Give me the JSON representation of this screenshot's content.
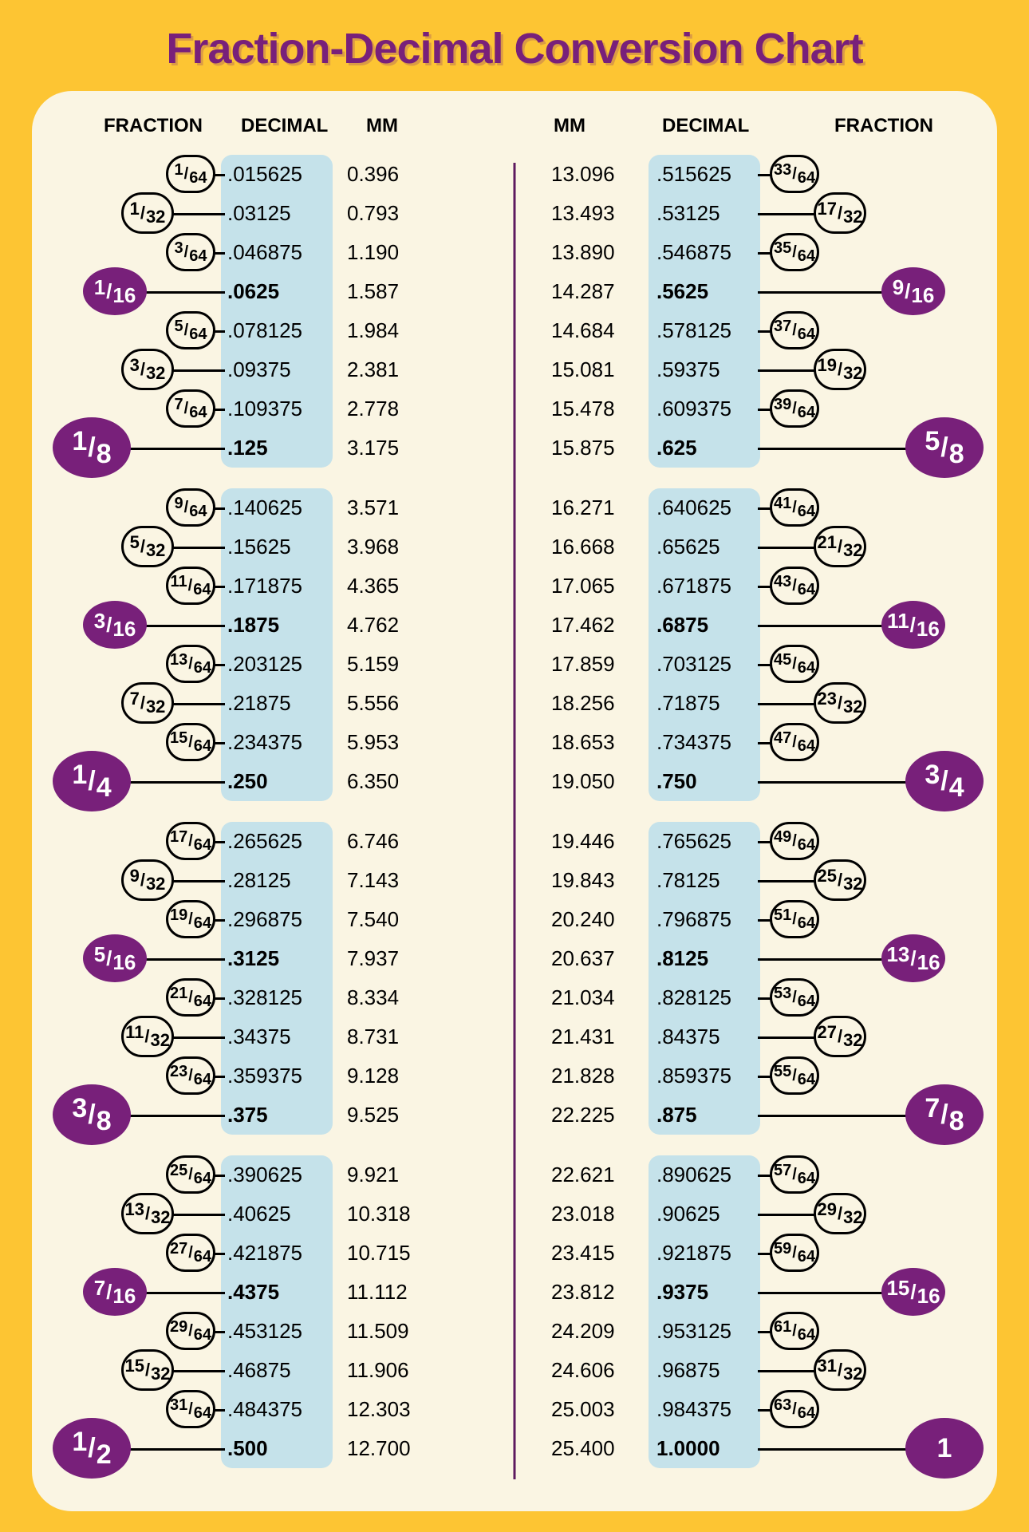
{
  "title": "Fraction-Decimal Conversion Chart",
  "colors": {
    "page_bg": "#fdc533",
    "sheet_bg": "#faf5e3",
    "accent": "#78207a",
    "highlight": "#c5e2ea",
    "divider": "#5d1a5f"
  },
  "columns": [
    "FRACTION",
    "DECIMAL",
    "MM",
    "MM",
    "DECIMAL",
    "FRACTION"
  ],
  "rows": [
    {
      "n": 1,
      "d": 64,
      "dec": ".015625",
      "mm": "0.396",
      "dec2": ".515625",
      "mm2": "13.096",
      "n2": 33,
      "d2": 64,
      "t": "64"
    },
    {
      "n": 1,
      "d": 32,
      "dec": ".03125",
      "mm": "0.793",
      "dec2": ".53125",
      "mm2": "13.493",
      "n2": 17,
      "d2": 32,
      "t": "32"
    },
    {
      "n": 3,
      "d": 64,
      "dec": ".046875",
      "mm": "1.190",
      "dec2": ".546875",
      "mm2": "13.890",
      "n2": 35,
      "d2": 64,
      "t": "64"
    },
    {
      "n": 1,
      "d": 16,
      "dec": ".0625",
      "mm": "1.587",
      "dec2": ".5625",
      "mm2": "14.287",
      "n2": 9,
      "d2": 16,
      "t": "16"
    },
    {
      "n": 5,
      "d": 64,
      "dec": ".078125",
      "mm": "1.984",
      "dec2": ".578125",
      "mm2": "14.684",
      "n2": 37,
      "d2": 64,
      "t": "64"
    },
    {
      "n": 3,
      "d": 32,
      "dec": ".09375",
      "mm": "2.381",
      "dec2": ".59375",
      "mm2": "15.081",
      "n2": 19,
      "d2": 32,
      "t": "32"
    },
    {
      "n": 7,
      "d": 64,
      "dec": ".109375",
      "mm": "2.778",
      "dec2": ".609375",
      "mm2": "15.478",
      "n2": 39,
      "d2": 64,
      "t": "64"
    },
    {
      "n": 1,
      "d": 8,
      "dec": ".125",
      "mm": "3.175",
      "dec2": ".625",
      "mm2": "15.875",
      "n2": 5,
      "d2": 8,
      "t": "8"
    },
    {
      "n": 9,
      "d": 64,
      "dec": ".140625",
      "mm": "3.571",
      "dec2": ".640625",
      "mm2": "16.271",
      "n2": 41,
      "d2": 64,
      "t": "64"
    },
    {
      "n": 5,
      "d": 32,
      "dec": ".15625",
      "mm": "3.968",
      "dec2": ".65625",
      "mm2": "16.668",
      "n2": 21,
      "d2": 32,
      "t": "32"
    },
    {
      "n": 11,
      "d": 64,
      "dec": ".171875",
      "mm": "4.365",
      "dec2": ".671875",
      "mm2": "17.065",
      "n2": 43,
      "d2": 64,
      "t": "64"
    },
    {
      "n": 3,
      "d": 16,
      "dec": ".1875",
      "mm": "4.762",
      "dec2": ".6875",
      "mm2": "17.462",
      "n2": 11,
      "d2": 16,
      "t": "16"
    },
    {
      "n": 13,
      "d": 64,
      "dec": ".203125",
      "mm": "5.159",
      "dec2": ".703125",
      "mm2": "17.859",
      "n2": 45,
      "d2": 64,
      "t": "64"
    },
    {
      "n": 7,
      "d": 32,
      "dec": ".21875",
      "mm": "5.556",
      "dec2": ".71875",
      "mm2": "18.256",
      "n2": 23,
      "d2": 32,
      "t": "32"
    },
    {
      "n": 15,
      "d": 64,
      "dec": ".234375",
      "mm": "5.953",
      "dec2": ".734375",
      "mm2": "18.653",
      "n2": 47,
      "d2": 64,
      "t": "64"
    },
    {
      "n": 1,
      "d": 4,
      "dec": ".250",
      "mm": "6.350",
      "dec2": ".750",
      "mm2": "19.050",
      "n2": 3,
      "d2": 4,
      "t": "8"
    },
    {
      "n": 17,
      "d": 64,
      "dec": ".265625",
      "mm": "6.746",
      "dec2": ".765625",
      "mm2": "19.446",
      "n2": 49,
      "d2": 64,
      "t": "64"
    },
    {
      "n": 9,
      "d": 32,
      "dec": ".28125",
      "mm": "7.143",
      "dec2": ".78125",
      "mm2": "19.843",
      "n2": 25,
      "d2": 32,
      "t": "32"
    },
    {
      "n": 19,
      "d": 64,
      "dec": ".296875",
      "mm": "7.540",
      "dec2": ".796875",
      "mm2": "20.240",
      "n2": 51,
      "d2": 64,
      "t": "64"
    },
    {
      "n": 5,
      "d": 16,
      "dec": ".3125",
      "mm": "7.937",
      "dec2": ".8125",
      "mm2": "20.637",
      "n2": 13,
      "d2": 16,
      "t": "16"
    },
    {
      "n": 21,
      "d": 64,
      "dec": ".328125",
      "mm": "8.334",
      "dec2": ".828125",
      "mm2": "21.034",
      "n2": 53,
      "d2": 64,
      "t": "64"
    },
    {
      "n": 11,
      "d": 32,
      "dec": ".34375",
      "mm": "8.731",
      "dec2": ".84375",
      "mm2": "21.431",
      "n2": 27,
      "d2": 32,
      "t": "32"
    },
    {
      "n": 23,
      "d": 64,
      "dec": ".359375",
      "mm": "9.128",
      "dec2": ".859375",
      "mm2": "21.828",
      "n2": 55,
      "d2": 64,
      "t": "64"
    },
    {
      "n": 3,
      "d": 8,
      "dec": ".375",
      "mm": "9.525",
      "dec2": ".875",
      "mm2": "22.225",
      "n2": 7,
      "d2": 8,
      "t": "8"
    },
    {
      "n": 25,
      "d": 64,
      "dec": ".390625",
      "mm": "9.921",
      "dec2": ".890625",
      "mm2": "22.621",
      "n2": 57,
      "d2": 64,
      "t": "64"
    },
    {
      "n": 13,
      "d": 32,
      "dec": ".40625",
      "mm": "10.318",
      "dec2": ".90625",
      "mm2": "23.018",
      "n2": 29,
      "d2": 32,
      "t": "32"
    },
    {
      "n": 27,
      "d": 64,
      "dec": ".421875",
      "mm": "10.715",
      "dec2": ".921875",
      "mm2": "23.415",
      "n2": 59,
      "d2": 64,
      "t": "64"
    },
    {
      "n": 7,
      "d": 16,
      "dec": ".4375",
      "mm": "11.112",
      "dec2": ".9375",
      "mm2": "23.812",
      "n2": 15,
      "d2": 16,
      "t": "16"
    },
    {
      "n": 29,
      "d": 64,
      "dec": ".453125",
      "mm": "11.509",
      "dec2": ".953125",
      "mm2": "24.209",
      "n2": 61,
      "d2": 64,
      "t": "64"
    },
    {
      "n": 15,
      "d": 32,
      "dec": ".46875",
      "mm": "11.906",
      "dec2": ".96875",
      "mm2": "24.606",
      "n2": 31,
      "d2": 32,
      "t": "32"
    },
    {
      "n": 31,
      "d": 64,
      "dec": ".484375",
      "mm": "12.303",
      "dec2": ".984375",
      "mm2": "25.003",
      "n2": 63,
      "d2": 64,
      "t": "64"
    },
    {
      "n": 1,
      "d": 2,
      "dec": ".500",
      "mm": "12.700",
      "dec2": "1.0000",
      "mm2": "25.400",
      "n2": 1,
      "d2": 1,
      "t": "8"
    }
  ]
}
